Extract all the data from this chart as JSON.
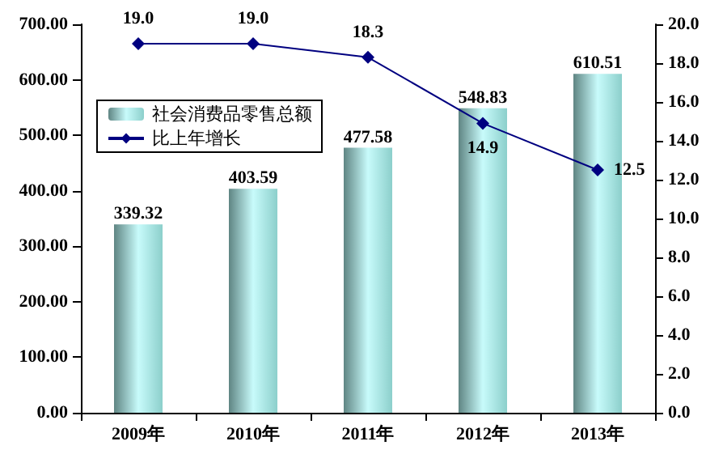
{
  "chart_data": {
    "type": "bar",
    "categories": [
      "2009年",
      "2010年",
      "2011年",
      "2012年",
      "2013年"
    ],
    "series": [
      {
        "name": "社会消费品零售总额",
        "color": "#8ccfcb",
        "values": [
          339.32,
          403.59,
          477.58,
          548.83,
          610.51
        ],
        "value_labels": [
          "339.32",
          "403.59",
          "477.58",
          "548.83",
          "610.51"
        ]
      },
      {
        "name": "比上年增长",
        "type": "line",
        "axis": "y2",
        "color": "#000080",
        "values": [
          19.0,
          19.0,
          18.3,
          14.9,
          12.5
        ],
        "value_labels": [
          "19.0",
          "19.0",
          "18.3",
          "14.9",
          "12.5"
        ]
      }
    ],
    "ylim": [
      0,
      700
    ],
    "yticks": [
      {
        "value": 0,
        "label": "0.00"
      },
      {
        "value": 100,
        "label": "100.00"
      },
      {
        "value": 200,
        "label": "200.00"
      },
      {
        "value": 300,
        "label": "300.00"
      },
      {
        "value": 400,
        "label": "400.00"
      },
      {
        "value": 500,
        "label": "500.00"
      },
      {
        "value": 600,
        "label": "600.00"
      },
      {
        "value": 700,
        "label": "700.00"
      }
    ],
    "y2lim": [
      0,
      20
    ],
    "y2ticks": [
      {
        "value": 0,
        "label": "0.0"
      },
      {
        "value": 2,
        "label": "2.0"
      },
      {
        "value": 4,
        "label": "4.0"
      },
      {
        "value": 6,
        "label": "6.0"
      },
      {
        "value": 8,
        "label": "8.0"
      },
      {
        "value": 10,
        "label": "10.0"
      },
      {
        "value": 12,
        "label": "12.0"
      },
      {
        "value": 14,
        "label": "14.0"
      },
      {
        "value": 16,
        "label": "16.0"
      },
      {
        "value": 18,
        "label": "18.0"
      },
      {
        "value": 20,
        "label": "20.0"
      }
    ],
    "grid": false,
    "legend": "left",
    "marker": "diamond",
    "line_style": "solid"
  }
}
